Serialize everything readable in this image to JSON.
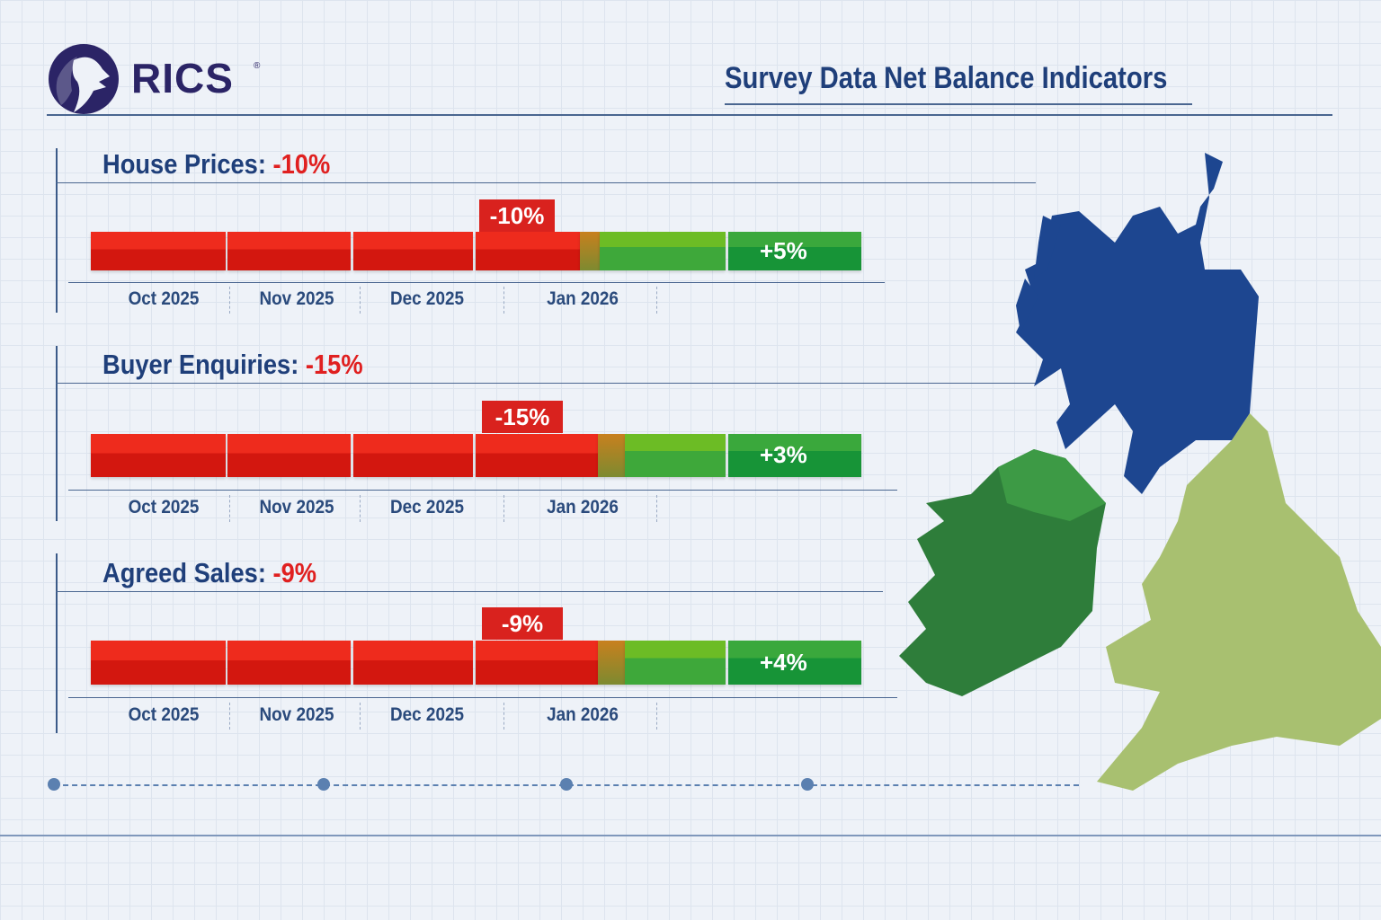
{
  "header": {
    "logo_text": "RICS",
    "logo_reg": "®",
    "title": "Survey Data  Net Balance Indicators"
  },
  "colors": {
    "negative": "#d9221e",
    "positive": "#1f9a3a",
    "navy": "#1f3f7a",
    "scotland": "#1d4690",
    "ireland": "#2e7d3a",
    "england": "#a8c070"
  },
  "chart_data": [
    {
      "type": "bar",
      "title": "House Prices",
      "headline_value": "-10%",
      "categories": [
        "Oct 2025",
        "Nov 2025",
        "Dec 2025",
        "Jan 2026"
      ],
      "negative_label": "-10%",
      "positive_label": "+5%",
      "values": {
        "negative": -10,
        "positive": 5
      }
    },
    {
      "type": "bar",
      "title": "Buyer Enquiries",
      "headline_value": "-15%",
      "categories": [
        "Oct 2025",
        "Nov 2025",
        "Dec 2025",
        "Jan 2026"
      ],
      "negative_label": "-15%",
      "positive_label": "+3%",
      "values": {
        "negative": -15,
        "positive": 3
      }
    },
    {
      "type": "bar",
      "title": "Agreed Sales",
      "headline_value": "-9%",
      "categories": [
        "Oct 2025",
        "Nov 2025",
        "Dec 2025",
        "Jan 2026"
      ],
      "negative_label": "-9%",
      "positive_label": "+4%",
      "values": {
        "negative": -9,
        "positive": 4
      }
    }
  ],
  "map": {
    "regions": [
      "scotland-icon",
      "ireland-icon",
      "england-wales-icon"
    ]
  }
}
